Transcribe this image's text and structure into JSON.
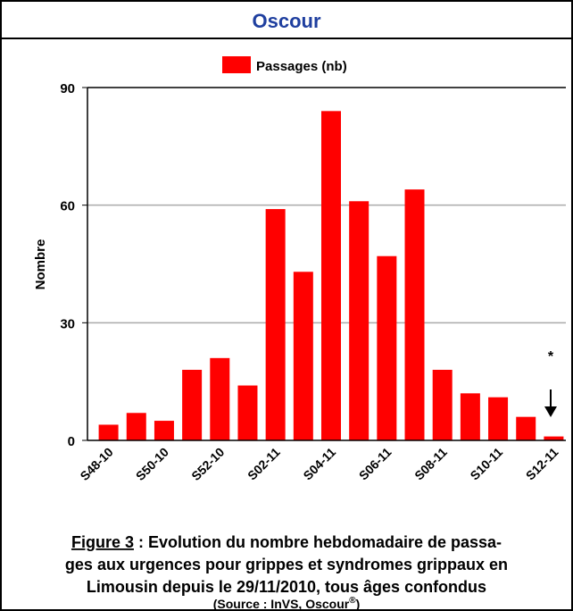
{
  "chart_data": {
    "type": "bar",
    "title": "Oscour",
    "ylabel": "Nombre",
    "legend": "Passages (nb)",
    "color": "#ff0000",
    "categories": [
      "S48-10",
      null,
      "S50-10",
      null,
      "S52-10",
      null,
      "S02-11",
      null,
      "S04-11",
      null,
      "S06-11",
      null,
      "S08-11",
      null,
      "S10-11",
      null,
      "S12-11"
    ],
    "values": [
      4,
      7,
      5,
      18,
      21,
      14,
      59,
      43,
      84,
      61,
      47,
      64,
      18,
      12,
      11,
      6,
      1
    ],
    "ylim": [
      0,
      90
    ],
    "yticks": [
      0,
      30,
      60,
      90
    ],
    "grid": true,
    "annotation": "*",
    "caption": {
      "label": "Figure 3",
      "lines": [
        " : Evolution du nombre hebdomadaire de passa-",
        "ges aux urgences pour grippes et syndromes grippaux en",
        "Limousin depuis le 29/11/2010, tous âges confondus"
      ],
      "source": "(Source : InVS, Oscour",
      "source_sup": "®",
      "source_end": ")"
    }
  }
}
